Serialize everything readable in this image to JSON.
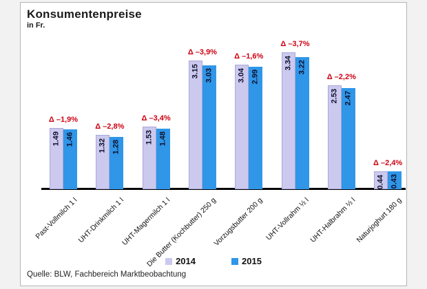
{
  "window": {
    "background": "#f2f2f2",
    "panel_border": "#b5b5b5"
  },
  "header": {
    "title": "Konsumentenpreise",
    "subtitle": "in Fr."
  },
  "source_note": "Quelle: BLW, Fachbereich Marktbeobachtung",
  "legend": {
    "items": [
      {
        "label": "2014",
        "color": "#cbc9ee"
      },
      {
        "label": "2015",
        "color": "#2f96e8"
      }
    ]
  },
  "chart_data": {
    "type": "bar",
    "title": "Konsumentenpreise",
    "unit_label": "in Fr.",
    "categories": [
      "Past-Vollmilch 1 l",
      "UHT-Drinkmilch 1 l",
      "UHT-Magermilch 1 l",
      "Die Butter (Kochbutter) 250 g",
      "Vorzugsbutter 200 g",
      "UHT-Vollrahm ½ l",
      "UHT-Halbrahm ½ l",
      "Naturjoghurt 180 g"
    ],
    "series": [
      {
        "name": "2014",
        "color": "#cbc9ee",
        "values": [
          1.49,
          1.32,
          1.53,
          3.15,
          3.04,
          3.34,
          2.53,
          0.44
        ],
        "labels": [
          "1.49",
          "1.32",
          "1.53",
          "3.15",
          "3.04",
          "3.34",
          "2.53",
          "0.44"
        ]
      },
      {
        "name": "2015",
        "color": "#2f96e8",
        "values": [
          1.46,
          1.28,
          1.48,
          3.03,
          2.99,
          3.22,
          2.47,
          0.43
        ],
        "labels": [
          "1.46",
          "1.28",
          "1.48",
          "3.03",
          "2.99",
          "3.22",
          "2.47",
          "0.43"
        ]
      }
    ],
    "delta_labels": [
      "Δ –1,9%",
      "Δ –2,8%",
      "Δ –3,4%",
      "Δ –3,9%",
      "Δ –1,6%",
      "Δ –3,7%",
      "Δ –2,2%",
      "Δ –2,4%"
    ],
    "delta_color": "#cc0011",
    "value_label_color": "#10102e",
    "ylim": [
      0,
      3.5
    ],
    "grid": false,
    "legend_position": "bottom-center",
    "bar_label_rotation": "vertical-bottom-to-top",
    "category_label_rotation": -45
  }
}
